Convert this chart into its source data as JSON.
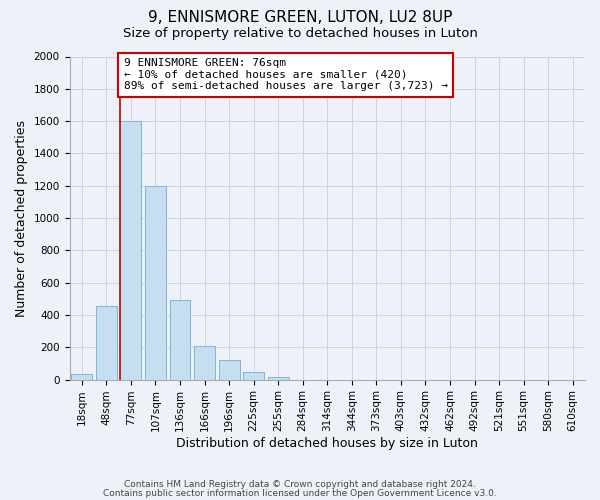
{
  "title": "9, ENNISMORE GREEN, LUTON, LU2 8UP",
  "subtitle": "Size of property relative to detached houses in Luton",
  "xlabel": "Distribution of detached houses by size in Luton",
  "ylabel": "Number of detached properties",
  "bar_labels": [
    "18sqm",
    "48sqm",
    "77sqm",
    "107sqm",
    "136sqm",
    "166sqm",
    "196sqm",
    "225sqm",
    "255sqm",
    "284sqm",
    "314sqm",
    "344sqm",
    "373sqm",
    "403sqm",
    "432sqm",
    "462sqm",
    "492sqm",
    "521sqm",
    "551sqm",
    "580sqm",
    "610sqm"
  ],
  "bar_values": [
    35,
    455,
    1600,
    1200,
    490,
    210,
    120,
    45,
    15,
    0,
    0,
    0,
    0,
    0,
    0,
    0,
    0,
    0,
    0,
    0,
    0
  ],
  "bar_color": "#c5dff0",
  "bar_edge_color": "#7fb5d5",
  "ylim": [
    0,
    2000
  ],
  "yticks": [
    0,
    200,
    400,
    600,
    800,
    1000,
    1200,
    1400,
    1600,
    1800,
    2000
  ],
  "property_line_bar_label": "77sqm",
  "property_line_color": "#cc0000",
  "annotation_title": "9 ENNISMORE GREEN: 76sqm",
  "annotation_line1": "← 10% of detached houses are smaller (420)",
  "annotation_line2": "89% of semi-detached houses are larger (3,723) →",
  "annotation_box_color": "#cc0000",
  "footer1": "Contains HM Land Registry data © Crown copyright and database right 2024.",
  "footer2": "Contains public sector information licensed under the Open Government Licence v3.0.",
  "background_color": "#eef2f8",
  "plot_background_color": "#eef2f8",
  "grid_color": "#c8d4e4",
  "title_fontsize": 11,
  "subtitle_fontsize": 9.5,
  "axis_label_fontsize": 9,
  "tick_fontsize": 7.5,
  "annotation_fontsize": 8,
  "footer_fontsize": 6.5
}
